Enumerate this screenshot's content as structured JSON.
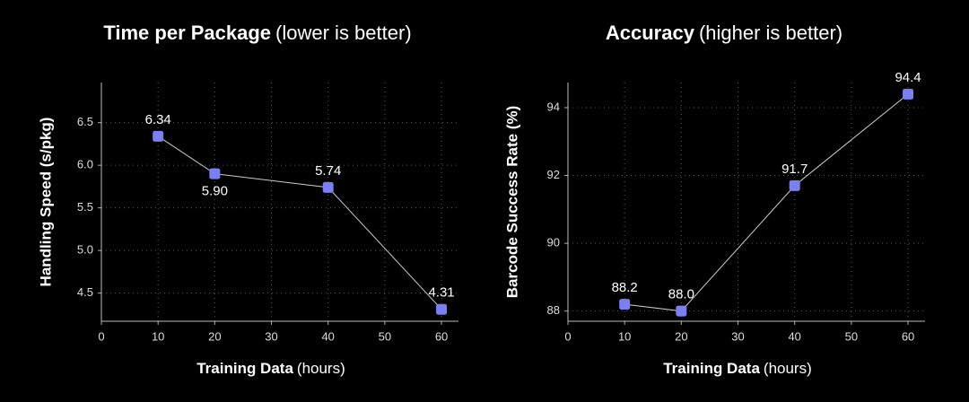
{
  "chart_data": [
    {
      "type": "line",
      "title": "Time per Package",
      "title_note": "(lower is better)",
      "x_label": "Training Data",
      "x_label_unit": "(hours)",
      "y_label": "Handling Speed (s/pkg)",
      "x": [
        10,
        20,
        40,
        60
      ],
      "series": [
        {
          "color": "#7b7ff2",
          "values": [
            6.34,
            5.9,
            5.74,
            4.31
          ],
          "value_labels": [
            "6.34",
            "5.90",
            "5.74",
            "4.31"
          ]
        }
      ],
      "xlim": [
        0,
        63
      ],
      "xticks": [
        0,
        10,
        20,
        30,
        40,
        50,
        60
      ],
      "ylim": [
        4.17,
        6.97
      ],
      "yticks": [
        4.5,
        {
          "value": 5,
          "label": "5.0"
        },
        5.5,
        {
          "value": 6,
          "label": "6.0"
        },
        6.5
      ],
      "grid": true
    },
    {
      "type": "line",
      "title": "Accuracy",
      "title_note": "(higher is better)",
      "x_label": "Training Data",
      "x_label_unit": "(hours)",
      "y_label": "Barcode Success Rate (%)",
      "x": [
        10,
        20,
        40,
        60
      ],
      "series": [
        {
          "color": "#7b7ff2",
          "values": [
            88.2,
            88,
            91.7,
            94.4
          ],
          "value_labels": [
            "88.2",
            "88.0",
            "91.7",
            "94.4"
          ]
        }
      ],
      "xlim": [
        0,
        63
      ],
      "xticks": [
        0,
        10,
        20,
        30,
        40,
        50,
        60
      ],
      "ylim": [
        87.7,
        94.74
      ],
      "yticks": [
        88,
        90,
        92,
        94
      ],
      "grid": true
    }
  ]
}
